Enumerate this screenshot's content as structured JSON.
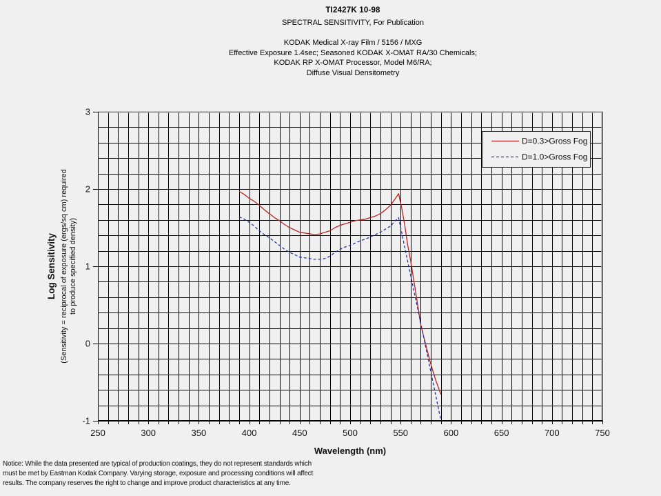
{
  "page": {
    "background": "#f0f0f0"
  },
  "header": {
    "doc_id": "TI2427K  10-98",
    "subtitle": "SPECTRAL SENSITIVITY, For Publication",
    "lines": [
      "KODAK Medical X-ray Film / 5156 / MXG",
      "Effective Exposure 1.4sec; Seasoned KODAK X-OMAT RA/30 Chemicals;",
      "KODAK RP X-OMAT Processor, Model M6/RA;",
      "Diffuse Visual Densitometry"
    ]
  },
  "notice": {
    "lines": [
      "Notice: While the data presented are typical of production coatings, they do not represent standards which",
      "must be met by Eastman Kodak Company.  Varying storage, exposure and processing conditions will affect",
      "results.  The company reserves the right to change and improve product characteristics at any time."
    ]
  },
  "chart_data": {
    "type": "line",
    "xlabel": "Wavelength (nm)",
    "ylabel": "Log Sensitivity",
    "ylabel_note": [
      "(Sensitivity = reciprocal of exposure (ergs/sq cm) required",
      "to produce specified density)"
    ],
    "xlim": [
      250,
      750
    ],
    "ylim": [
      -1,
      3
    ],
    "x_tick_labels": [
      250,
      300,
      350,
      400,
      450,
      500,
      550,
      600,
      650,
      700,
      750
    ],
    "y_tick_labels": [
      3,
      2,
      1,
      0,
      -1
    ],
    "x_grid_step": 10,
    "y_grid_step": 0.2,
    "grid": true,
    "legend_position": "top-right",
    "colors": {
      "grid": "#000000",
      "outer_border": "#999999",
      "axis": "#000000",
      "series_red": "#bb2222",
      "series_blue": "#2233aa"
    },
    "series": [
      {
        "name": "D=0.3>Gross Fog",
        "color": "#bb2222",
        "style": "solid",
        "points": [
          [
            390,
            1.97
          ],
          [
            395,
            1.93
          ],
          [
            400,
            1.88
          ],
          [
            405,
            1.84
          ],
          [
            410,
            1.79
          ],
          [
            415,
            1.73
          ],
          [
            420,
            1.68
          ],
          [
            425,
            1.63
          ],
          [
            430,
            1.59
          ],
          [
            435,
            1.54
          ],
          [
            440,
            1.5
          ],
          [
            445,
            1.47
          ],
          [
            450,
            1.44
          ],
          [
            455,
            1.43
          ],
          [
            460,
            1.42
          ],
          [
            465,
            1.41
          ],
          [
            470,
            1.42
          ],
          [
            475,
            1.44
          ],
          [
            480,
            1.46
          ],
          [
            485,
            1.5
          ],
          [
            490,
            1.53
          ],
          [
            495,
            1.55
          ],
          [
            500,
            1.57
          ],
          [
            505,
            1.59
          ],
          [
            510,
            1.6
          ],
          [
            515,
            1.61
          ],
          [
            520,
            1.63
          ],
          [
            525,
            1.65
          ],
          [
            530,
            1.68
          ],
          [
            535,
            1.73
          ],
          [
            540,
            1.79
          ],
          [
            545,
            1.88
          ],
          [
            548,
            1.94
          ],
          [
            551,
            1.76
          ],
          [
            554,
            1.54
          ],
          [
            557,
            1.28
          ],
          [
            560,
            1.07
          ],
          [
            565,
            0.66
          ],
          [
            570,
            0.24
          ],
          [
            575,
            -0.02
          ],
          [
            580,
            -0.27
          ],
          [
            585,
            -0.48
          ],
          [
            590,
            -0.66
          ]
        ]
      },
      {
        "name": "D=1.0>Gross Fog",
        "color": "#2233aa",
        "style": "dashed",
        "points": [
          [
            390,
            1.64
          ],
          [
            395,
            1.61
          ],
          [
            400,
            1.57
          ],
          [
            405,
            1.52
          ],
          [
            410,
            1.46
          ],
          [
            415,
            1.41
          ],
          [
            420,
            1.37
          ],
          [
            425,
            1.32
          ],
          [
            430,
            1.27
          ],
          [
            435,
            1.22
          ],
          [
            440,
            1.18
          ],
          [
            445,
            1.15
          ],
          [
            450,
            1.12
          ],
          [
            455,
            1.11
          ],
          [
            460,
            1.1
          ],
          [
            465,
            1.09
          ],
          [
            470,
            1.09
          ],
          [
            475,
            1.1
          ],
          [
            480,
            1.13
          ],
          [
            485,
            1.18
          ],
          [
            490,
            1.22
          ],
          [
            495,
            1.25
          ],
          [
            500,
            1.27
          ],
          [
            505,
            1.3
          ],
          [
            510,
            1.33
          ],
          [
            515,
            1.35
          ],
          [
            520,
            1.38
          ],
          [
            525,
            1.41
          ],
          [
            530,
            1.44
          ],
          [
            535,
            1.48
          ],
          [
            540,
            1.52
          ],
          [
            544,
            1.58
          ],
          [
            548,
            1.63
          ],
          [
            552,
            1.38
          ],
          [
            555,
            1.19
          ],
          [
            560,
            0.88
          ],
          [
            565,
            0.57
          ],
          [
            570,
            0.26
          ],
          [
            575,
            -0.05
          ],
          [
            580,
            -0.37
          ],
          [
            585,
            -0.68
          ],
          [
            590,
            -1.0
          ]
        ]
      }
    ]
  }
}
